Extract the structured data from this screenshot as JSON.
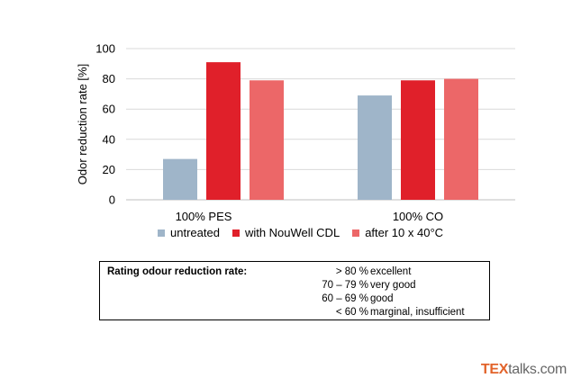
{
  "chart_data": {
    "type": "bar",
    "ylabel": "Odor reduction rate [%]",
    "xlabel": "",
    "ylim": [
      0,
      100
    ],
    "yticks": [
      0,
      20,
      40,
      60,
      80,
      100
    ],
    "grid": true,
    "categories": [
      "100% PES",
      "100% CO"
    ],
    "series": [
      {
        "name": "untreated",
        "color": "#9fb5c9",
        "values": [
          27,
          69
        ]
      },
      {
        "name": "with NouWell CDL",
        "color": "#e0202a",
        "values": [
          91,
          79
        ]
      },
      {
        "name": "after 10 x 40°C",
        "color": "#ec6768",
        "values": [
          79,
          80
        ]
      }
    ],
    "legend": "bottom"
  },
  "rating_table": {
    "title": "Rating odour reduction rate:",
    "rows": [
      {
        "range": "> 80 %",
        "label": "excellent"
      },
      {
        "range": "70 – 79 %",
        "label": "very good"
      },
      {
        "range": "60 – 69 %",
        "label": "good"
      },
      {
        "range": "< 60 %",
        "label": "marginal, insufficient"
      }
    ]
  },
  "watermark": {
    "part1": "TEX",
    "part2": "talks.com"
  },
  "colors": {
    "axis": "#000000",
    "grid": "#d9d9d9"
  }
}
